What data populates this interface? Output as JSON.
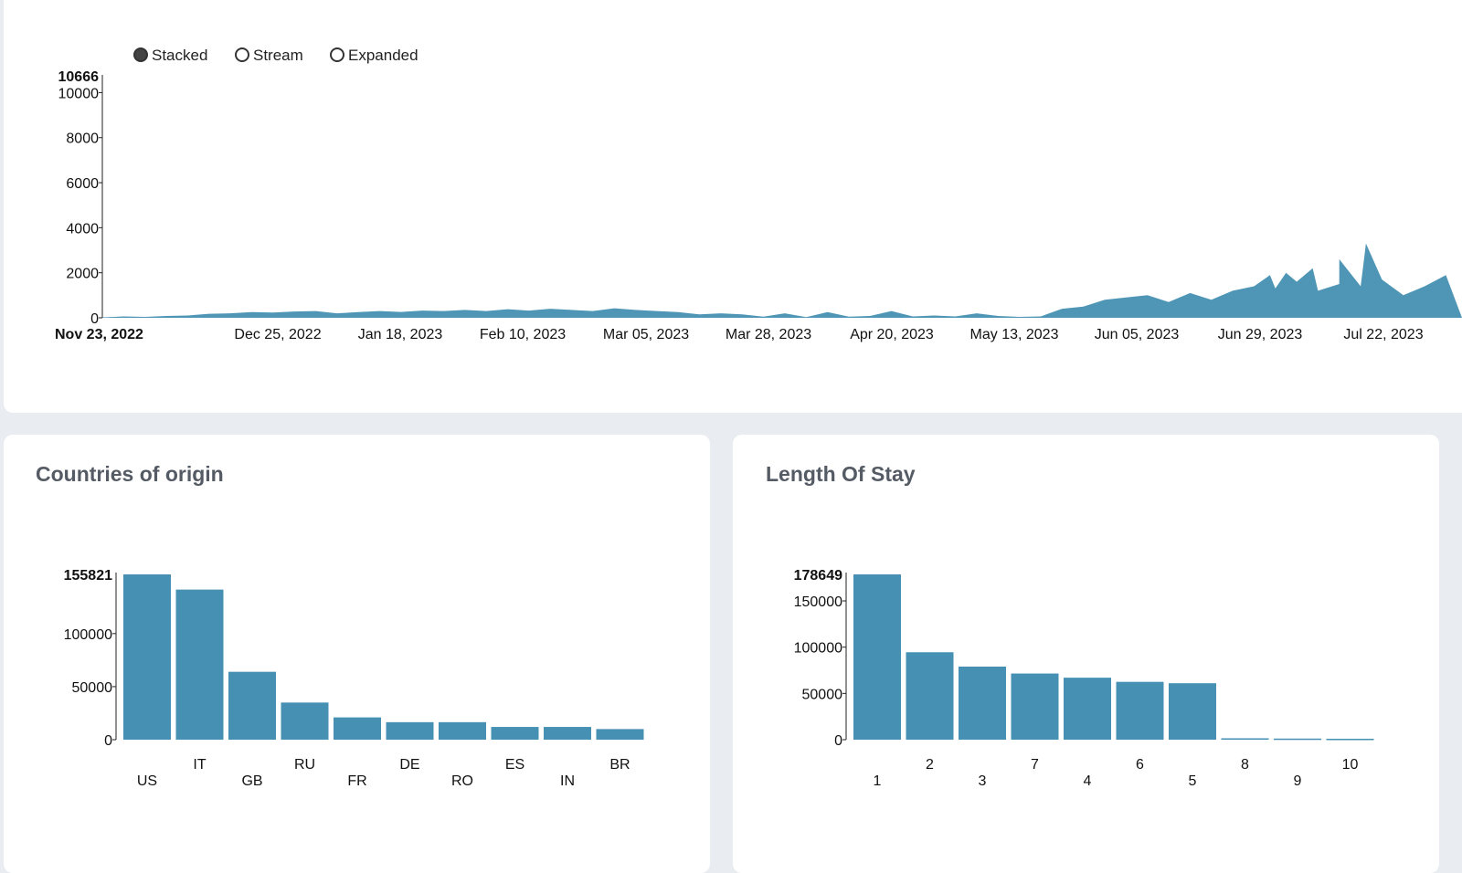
{
  "colors": {
    "bar": "#4690b4",
    "area": "#4f96b6",
    "card": "#ffffff",
    "page": "#e9ecf0"
  },
  "timeline": {
    "modes": [
      {
        "label": "Stacked",
        "selected": true
      },
      {
        "label": "Stream",
        "selected": false
      },
      {
        "label": "Expanded",
        "selected": false
      }
    ],
    "chart_data": {
      "type": "area",
      "y_max_label": "10666",
      "ylim": [
        0,
        10666
      ],
      "yticks": [
        "10000",
        "8000",
        "6000",
        "4000",
        "2000",
        "0"
      ],
      "ytick_values": [
        10000,
        8000,
        6000,
        4000,
        2000,
        0
      ],
      "x_start_label": "Nov 23, 2022",
      "xticks": [
        "Dec 25, 2022",
        "Jan 18, 2023",
        "Feb 10, 2023",
        "Mar 05, 2023",
        "Mar 28, 2023",
        "Apr 20, 2023",
        "May 13, 2023",
        "Jun 05, 2023",
        "Jun 29, 2023",
        "Jul 22, 2023"
      ],
      "x": [
        "2022-11-23",
        "2022-11-27",
        "2022-12-01",
        "2022-12-05",
        "2022-12-09",
        "2022-12-13",
        "2022-12-17",
        "2022-12-21",
        "2022-12-25",
        "2022-12-29",
        "2023-01-02",
        "2023-01-06",
        "2023-01-10",
        "2023-01-14",
        "2023-01-18",
        "2023-01-22",
        "2023-01-26",
        "2023-01-30",
        "2023-02-03",
        "2023-02-07",
        "2023-02-11",
        "2023-02-15",
        "2023-02-19",
        "2023-02-23",
        "2023-02-27",
        "2023-03-03",
        "2023-03-07",
        "2023-03-11",
        "2023-03-15",
        "2023-03-19",
        "2023-03-23",
        "2023-03-27",
        "2023-03-31",
        "2023-04-04",
        "2023-04-08",
        "2023-04-12",
        "2023-04-16",
        "2023-04-20",
        "2023-04-24",
        "2023-04-28",
        "2023-05-02",
        "2023-05-06",
        "2023-05-10",
        "2023-05-14",
        "2023-05-18",
        "2023-05-22",
        "2023-05-26",
        "2023-05-30",
        "2023-06-03",
        "2023-06-07",
        "2023-06-11",
        "2023-06-15",
        "2023-06-19",
        "2023-06-23",
        "2023-06-27",
        "2023-07-01",
        "2023-07-05",
        "2023-07-09",
        "2023-07-13",
        "2023-07-17",
        "2023-07-21",
        "2023-07-25",
        "2023-07-29",
        "2023-08-02"
      ],
      "values": [
        20,
        60,
        40,
        80,
        100,
        180,
        200,
        250,
        230,
        280,
        300,
        200,
        250,
        300,
        260,
        320,
        300,
        350,
        300,
        380,
        320,
        400,
        350,
        300,
        420,
        350,
        300,
        250,
        150,
        200,
        150,
        50,
        200,
        30,
        250,
        50,
        80,
        300,
        60,
        100,
        60,
        200,
        80,
        40,
        60,
        400,
        500,
        800,
        900,
        1000,
        700,
        1100,
        800,
        1200,
        1400,
        1300,
        1600,
        1200,
        1500,
        1400,
        1700,
        1000,
        1400,
        1900
      ],
      "peaks": [
        [
          "2023-06-30",
          1900
        ],
        [
          "2023-07-03",
          2000
        ],
        [
          "2023-07-08",
          2200
        ],
        [
          "2023-07-13",
          2600
        ],
        [
          "2023-07-18",
          3300
        ]
      ]
    }
  },
  "countries": {
    "title": "Countries of origin",
    "chart_data": {
      "type": "bar",
      "title": "Countries of origin",
      "categories": [
        "US",
        "IT",
        "GB",
        "RU",
        "FR",
        "DE",
        "RO",
        "ES",
        "IN",
        "BR"
      ],
      "values": [
        155821,
        141500,
        64000,
        35000,
        21000,
        16500,
        16500,
        12000,
        12000,
        10000
      ],
      "y_max_label": "155821",
      "ylim": [
        0,
        155821
      ],
      "yticks": [
        "100000",
        "50000",
        "0"
      ],
      "ytick_values": [
        100000,
        50000,
        0
      ]
    }
  },
  "stay": {
    "title": "Length Of Stay",
    "chart_data": {
      "type": "bar",
      "title": "Length Of Stay",
      "categories": [
        "1",
        "2",
        "3",
        "7",
        "4",
        "6",
        "5",
        "8",
        "9",
        "10"
      ],
      "values": [
        178649,
        94500,
        79000,
        71500,
        67000,
        62500,
        61000,
        1500,
        1200,
        1000
      ],
      "y_max_label": "178649",
      "ylim": [
        0,
        178649
      ],
      "yticks": [
        "150000",
        "100000",
        "50000",
        "0"
      ],
      "ytick_values": [
        150000,
        100000,
        50000,
        0
      ]
    }
  }
}
